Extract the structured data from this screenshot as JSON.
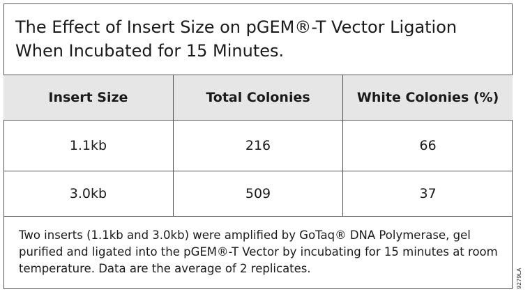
{
  "title": {
    "lines": [
      "The Effect of Insert Size on pGEM®-T Vector Ligation",
      "When Incubated for 15 Minutes."
    ]
  },
  "table": {
    "header": [
      "Insert Size",
      "Total Colonies",
      "White Colonies (%)"
    ],
    "rows": [
      [
        "1.1kb",
        216,
        66
      ],
      [
        "3.0kb",
        509,
        37
      ]
    ]
  },
  "note": "Two inserts (1.1kb and 3.0kb) were amplified by GoTaq® DNA Polymerase, gel purified and ligated into the pGEM®-T Vector by incubating for 15 minutes at room temperature. Data are the average of 2 replicates.",
  "code": "9279LA"
}
